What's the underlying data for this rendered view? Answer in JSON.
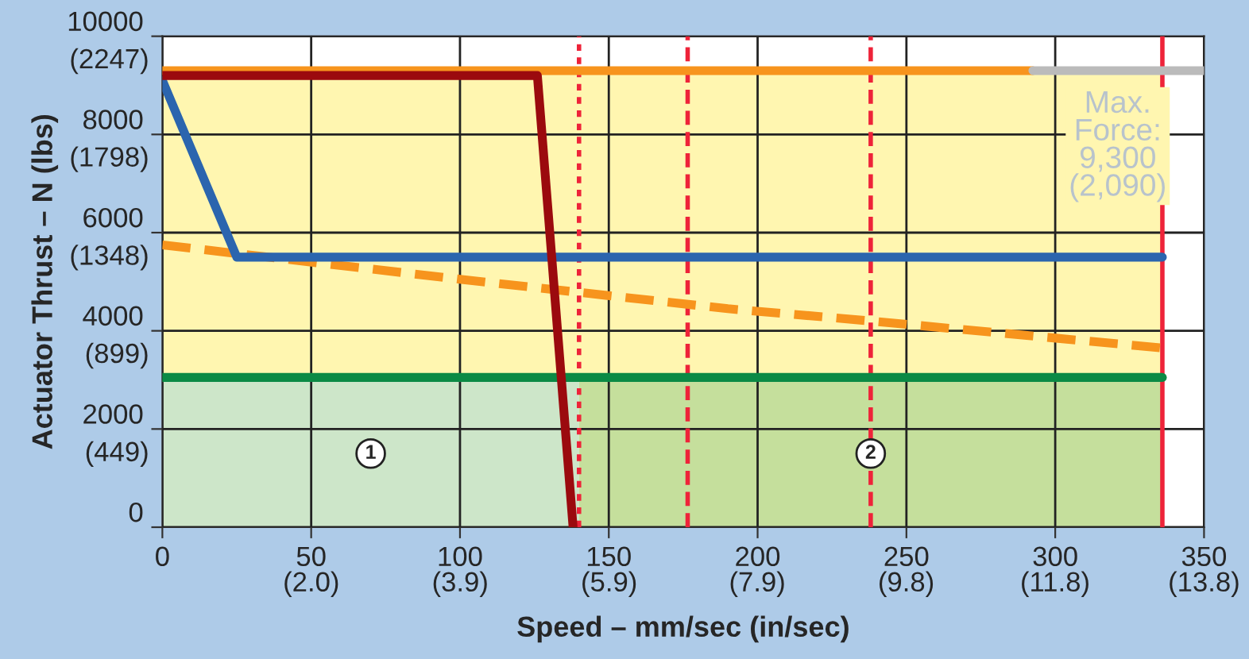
{
  "chart_data": {
    "type": "line",
    "xlabel": "Speed – mm/sec (in/sec)",
    "ylabel": "Actuator Thrust – N (lbs)",
    "xlim": [
      0,
      350
    ],
    "ylim": [
      0,
      10000
    ],
    "xticks": [
      0,
      50,
      100,
      150,
      200,
      250,
      300,
      350
    ],
    "yticks": [
      0,
      2000,
      4000,
      6000,
      8000,
      10000
    ],
    "x2lim": [
      0,
      13.78
    ],
    "x2ticks": [
      {
        "value": 1.97,
        "label": "(2.0)"
      },
      {
        "value": 3.94,
        "label": "(3.9)"
      },
      {
        "value": 5.91,
        "label": "(5.9)"
      },
      {
        "value": 7.87,
        "label": "(7.9)"
      },
      {
        "value": 9.84,
        "label": "(9.8)"
      },
      {
        "value": 11.81,
        "label": "(11.8)"
      },
      {
        "value": 13.78,
        "label": "(13.8)"
      }
    ],
    "y2lim": [
      0,
      2247
    ],
    "y2ticks": [
      {
        "value": 449,
        "label": "(449)"
      },
      {
        "value": 899,
        "label": "(899)"
      },
      {
        "value": 1348,
        "label": "(1348)"
      },
      {
        "value": 1798,
        "label": "(1798)"
      },
      {
        "value": 2247,
        "label": "(2247)"
      }
    ],
    "grid": true,
    "series": [
      {
        "color": "#0b8a45",
        "x": [
          0,
          336
        ],
        "values": [
          3050,
          3050
        ]
      },
      {
        "color": "#f7941d",
        "line_style": "dashed",
        "x": [
          0,
          100,
          190,
          238,
          336
        ],
        "values": [
          5750,
          5050,
          4450,
          4200,
          3650
        ]
      },
      {
        "color": "#2b65ae",
        "x": [
          0,
          25,
          336
        ],
        "values": [
          9100,
          5500,
          5500
        ]
      },
      {
        "color": "#f7941d",
        "x": [
          0,
          292.5
        ],
        "values": [
          9300,
          9300
        ]
      },
      {
        "color": "#bbbbbb",
        "x": [
          292.5,
          350
        ],
        "values": [
          9300,
          9300
        ]
      },
      {
        "color": "#9b0a0e",
        "x": [
          0,
          126,
          138
        ],
        "values": [
          9200,
          9200,
          0
        ]
      }
    ],
    "bands": [
      {
        "axis": "x",
        "from": 0,
        "to": 140,
        "label": "1",
        "color": "#cde6c9"
      },
      {
        "axis": "x",
        "from": 140,
        "to": 336,
        "label": "2",
        "color": "#c5df9c"
      },
      {
        "axis": "y",
        "from": 3050,
        "to": 9300,
        "color": "#fff6b0"
      }
    ],
    "ref_lines": [
      {
        "axis": "x",
        "value": 140,
        "color": "#ee2339",
        "line_style": "dotted"
      },
      {
        "axis": "x",
        "value": 176.5,
        "color": "#ee2339",
        "line_style": "dashed"
      },
      {
        "axis": "x",
        "value": 238,
        "color": "#ee2339",
        "line_style": "dashed"
      },
      {
        "axis": "x",
        "value": 336,
        "color": "#ee2339",
        "line_style": "solid"
      }
    ],
    "annotations": [
      {
        "text": "Max.\nForce:\n9,300\n(2,090)",
        "x": 321,
        "y": 9300
      }
    ]
  }
}
